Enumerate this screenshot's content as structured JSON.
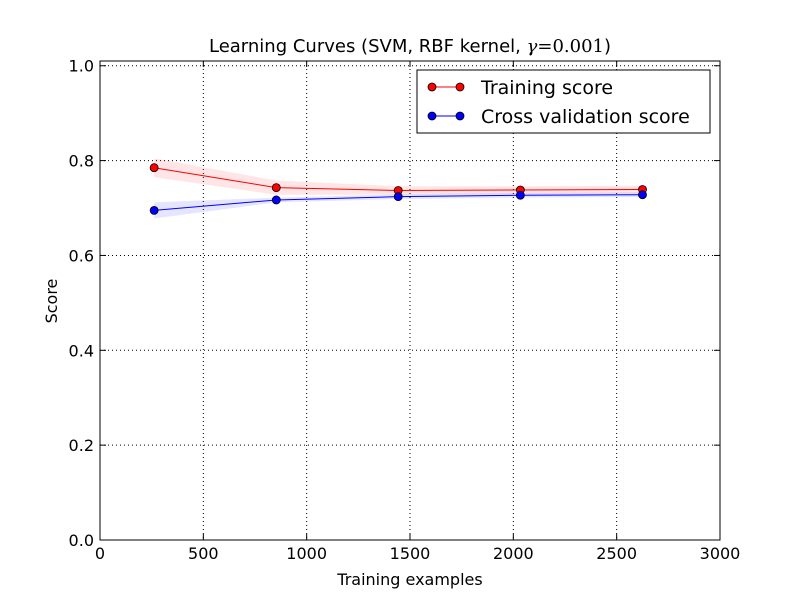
{
  "chart_data": {
    "type": "line",
    "title": "Learning Curves (SVM, RBF kernel, γ=0.001)",
    "title_main": "Learning Curves (SVM, RBF kernel, ",
    "title_gamma": "γ",
    "title_eq": "=",
    "title_value": "0.001",
    "title_close": ")",
    "xlabel": "Training examples",
    "ylabel": "Score",
    "xlim": [
      0,
      3000
    ],
    "ylim": [
      0.0,
      1.01
    ],
    "xticks": [
      0,
      500,
      1000,
      1500,
      2000,
      2500,
      3000
    ],
    "xtick_labels": [
      "0",
      "500",
      "1000",
      "1500",
      "2000",
      "2500",
      "3000"
    ],
    "yticks": [
      0.0,
      0.2,
      0.4,
      0.6,
      0.8,
      1.0
    ],
    "ytick_labels": [
      "0.0",
      "0.2",
      "0.4",
      "0.6",
      "0.8",
      "1.0"
    ],
    "grid": true,
    "legend_position": "top-right",
    "x": [
      262,
      853,
      1443,
      2034,
      2625
    ],
    "series": [
      {
        "name": "Training score",
        "color": "#ff0000",
        "band_color": "#ff0000",
        "values": [
          0.785,
          0.743,
          0.737,
          0.738,
          0.739
        ],
        "band_lower": [
          0.765,
          0.728,
          0.728,
          0.73,
          0.731
        ],
        "band_upper": [
          0.805,
          0.758,
          0.746,
          0.746,
          0.747
        ]
      },
      {
        "name": "Cross validation score",
        "color": "#0000ff",
        "band_color": "#0000ff",
        "values": [
          0.695,
          0.717,
          0.724,
          0.727,
          0.728
        ],
        "band_lower": [
          0.678,
          0.712,
          0.719,
          0.722,
          0.723
        ],
        "band_upper": [
          0.712,
          0.722,
          0.729,
          0.732,
          0.733
        ]
      }
    ]
  }
}
